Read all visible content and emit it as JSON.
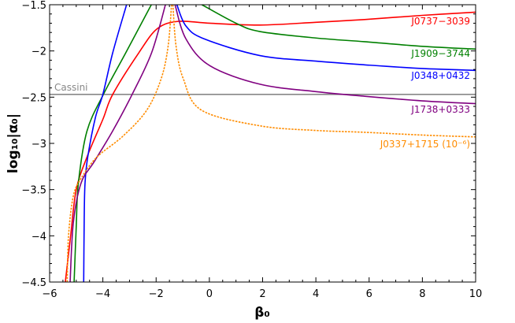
{
  "chart_data": {
    "type": "line",
    "xlabel": "β₀",
    "ylabel": "log₁₀|α₀|",
    "xlim": [
      -6,
      10
    ],
    "ylim": [
      -4.5,
      -1.5
    ],
    "xticks": [
      -6,
      -4,
      -2,
      0,
      2,
      4,
      6,
      8,
      10
    ],
    "xtick_labels": [
      "−6",
      "−4",
      "−2",
      "0",
      "2",
      "4",
      "6",
      "8",
      "10"
    ],
    "yticks": [
      -4.5,
      -4,
      -3.5,
      -3,
      -2.5,
      -2,
      -1.5
    ],
    "ytick_labels": [
      "−4.5",
      "−4",
      "−3.5",
      "−3",
      "−2.5",
      "−2",
      "−1.5"
    ],
    "grid": false,
    "reference_line": {
      "name": "Cassini",
      "y": -2.47,
      "color": "#888888"
    },
    "series": [
      {
        "name": "J0737−3039",
        "color": "#ff0000",
        "dashed": false,
        "branches": [
          [
            [
              -5.41,
              -4.5
            ],
            [
              -5.21,
              -4.0
            ],
            [
              -5.0,
              -3.5
            ],
            [
              -4.6,
              -3.15
            ],
            [
              -4.0,
              -2.74
            ],
            [
              -3.63,
              -2.47
            ],
            [
              -2.65,
              -2.02
            ],
            [
              -1.96,
              -1.76
            ],
            [
              -1.17,
              -1.68
            ],
            [
              0.0,
              -1.7
            ],
            [
              1.9,
              -1.72
            ],
            [
              4.0,
              -1.69
            ],
            [
              5.83,
              -1.66
            ],
            [
              8.0,
              -1.615
            ],
            [
              10,
              -1.58
            ]
          ]
        ]
      },
      {
        "name": "J1909−3744",
        "color": "#008000",
        "dashed": false,
        "branches": [
          [
            [
              -5.08,
              -4.5
            ],
            [
              -5.0,
              -3.9
            ],
            [
              -4.92,
              -3.43
            ],
            [
              -4.6,
              -2.87
            ],
            [
              -3.98,
              -2.47
            ],
            [
              -3.14,
              -2.02
            ],
            [
              -2.18,
              -1.5
            ]
          ],
          [
            [
              -0.28,
              -1.5
            ],
            [
              1.0,
              -1.7
            ],
            [
              1.9,
              -1.79
            ],
            [
              4.0,
              -1.86
            ],
            [
              5.83,
              -1.9
            ],
            [
              8.0,
              -1.95
            ],
            [
              10,
              -1.98
            ]
          ]
        ]
      },
      {
        "name": "J0348+0432",
        "color": "#0000ff",
        "dashed": false,
        "branches": [
          [
            [
              -4.72,
              -4.5
            ],
            [
              -4.7,
              -3.8
            ],
            [
              -4.67,
              -3.43
            ],
            [
              -4.57,
              -3.15
            ],
            [
              -4.28,
              -2.72
            ],
            [
              -4.0,
              -2.47
            ],
            [
              -3.63,
              -2.02
            ],
            [
              -3.11,
              -1.5
            ]
          ],
          [
            [
              -1.22,
              -1.5
            ],
            [
              -0.88,
              -1.73
            ],
            [
              -0.19,
              -1.87
            ],
            [
              1.9,
              -2.05
            ],
            [
              4.0,
              -2.11
            ],
            [
              5.83,
              -2.15
            ],
            [
              8.0,
              -2.19
            ],
            [
              10,
              -2.21
            ]
          ]
        ]
      },
      {
        "name": "J1738+0333",
        "color": "#800080",
        "dashed": false,
        "branches": [
          [
            [
              -5.23,
              -4.5
            ],
            [
              -5.11,
              -3.86
            ],
            [
              -4.82,
              -3.43
            ],
            [
              -4.33,
              -3.2
            ],
            [
              -3.64,
              -2.87
            ],
            [
              -2.9,
              -2.47
            ],
            [
              -2.17,
              -2.02
            ],
            [
              -1.65,
              -1.5
            ]
          ],
          [
            [
              -1.29,
              -1.5
            ],
            [
              -0.88,
              -1.87
            ],
            [
              0.02,
              -2.16
            ],
            [
              1.9,
              -2.36
            ],
            [
              4.0,
              -2.44
            ],
            [
              5.83,
              -2.49
            ],
            [
              8.0,
              -2.54
            ],
            [
              10,
              -2.57
            ]
          ]
        ]
      },
      {
        "name": "J0337+1715 (10⁻⁶)",
        "color": "#ff8c00",
        "dashed": true,
        "branches": [
          [
            [
              -5.34,
              -4.5
            ],
            [
              -5.29,
              -4.0
            ],
            [
              -5.11,
              -3.57
            ],
            [
              -4.82,
              -3.38
            ],
            [
              -4.23,
              -3.15
            ],
            [
              -3.24,
              -2.92
            ],
            [
              -2.35,
              -2.64
            ],
            [
              -1.81,
              -2.3
            ],
            [
              -1.55,
              -1.95
            ],
            [
              -1.42,
              -1.5
            ]
          ],
          [
            [
              -1.37,
              -1.5
            ],
            [
              -1.25,
              -1.95
            ],
            [
              -0.98,
              -2.3
            ],
            [
              -0.3,
              -2.64
            ],
            [
              1.9,
              -2.81
            ],
            [
              4.0,
              -2.86
            ],
            [
              5.83,
              -2.88
            ],
            [
              8.0,
              -2.91
            ],
            [
              10,
              -2.93
            ]
          ]
        ]
      }
    ]
  }
}
